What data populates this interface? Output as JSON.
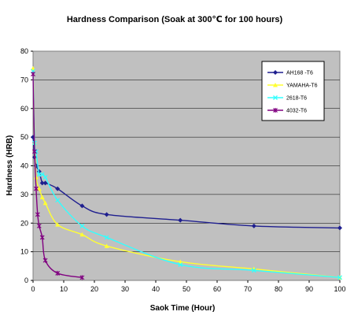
{
  "chart_data": {
    "type": "line",
    "title": "Hardness Comparison (Soak at 300℃ for 100 hours)",
    "xlabel": "Saok Time (Hour)",
    "ylabel": "Hardness (HRB)",
    "xlim": [
      0,
      100
    ],
    "ylim": [
      0,
      80
    ],
    "xticks": [
      0,
      10,
      20,
      30,
      40,
      50,
      60,
      70,
      80,
      90,
      100
    ],
    "yticks": [
      0,
      10,
      20,
      30,
      40,
      50,
      60,
      70,
      80
    ],
    "plot_background": "#c0c0c0",
    "grid": "horizontal",
    "legend_position": "top-right",
    "series": [
      {
        "name": "AH168 -T6",
        "color": "#1f1f8f",
        "marker": "diamond",
        "points": [
          [
            0,
            50
          ],
          [
            0.5,
            43
          ],
          [
            1,
            40
          ],
          [
            2,
            38
          ],
          [
            3,
            34
          ],
          [
            4,
            34
          ],
          [
            8,
            32
          ],
          [
            16,
            26
          ],
          [
            24,
            23
          ],
          [
            48,
            21
          ],
          [
            72,
            19
          ],
          [
            100,
            18.3
          ]
        ]
      },
      {
        "name": "YAMAHA-T6",
        "color": "#ffff33",
        "marker": "triangle",
        "points": [
          [
            0,
            74
          ],
          [
            0.5,
            48
          ],
          [
            1,
            36
          ],
          [
            2,
            32
          ],
          [
            3,
            29
          ],
          [
            4,
            27
          ],
          [
            8,
            19.5
          ],
          [
            16,
            16
          ],
          [
            24,
            12
          ],
          [
            48,
            6.5
          ],
          [
            72,
            4
          ],
          [
            100,
            1
          ]
        ]
      },
      {
        "name": "2618-T6",
        "color": "#33ffff",
        "marker": "x",
        "points": [
          [
            0,
            73
          ],
          [
            0.5,
            48
          ],
          [
            1,
            45
          ],
          [
            2,
            37
          ],
          [
            3,
            37
          ],
          [
            4,
            36
          ],
          [
            8,
            28
          ],
          [
            16,
            19
          ],
          [
            24,
            15
          ],
          [
            48,
            5.5
          ],
          [
            72,
            3.5
          ],
          [
            100,
            1
          ]
        ]
      },
      {
        "name": "4032-T6",
        "color": "#800080",
        "marker": "star",
        "points": [
          [
            0,
            72
          ],
          [
            0.5,
            45
          ],
          [
            1,
            32
          ],
          [
            1.5,
            23
          ],
          [
            2,
            19
          ],
          [
            3,
            15
          ],
          [
            4,
            7
          ],
          [
            8,
            2.5
          ],
          [
            16,
            1
          ]
        ]
      }
    ]
  }
}
